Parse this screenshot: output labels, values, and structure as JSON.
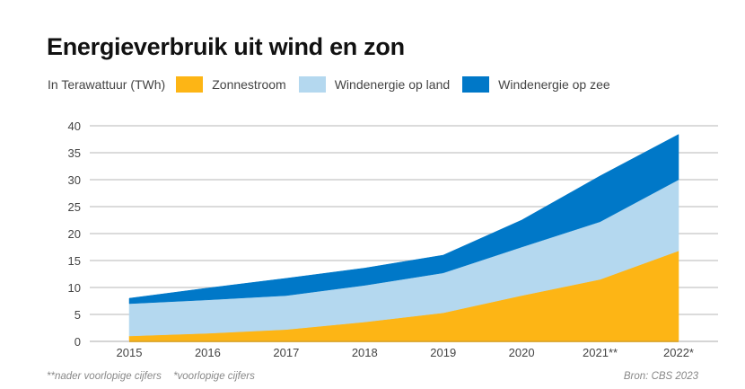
{
  "chart_data": {
    "type": "area",
    "stacked": true,
    "title": "Energieverbruik uit wind en zon",
    "unit_label": "In Terawattuur (TWh)",
    "xlabel": "",
    "ylabel": "",
    "categories": [
      "2015",
      "2016",
      "2017",
      "2018",
      "2019",
      "2020",
      "2021**",
      "2022*"
    ],
    "ylim": [
      0,
      40
    ],
    "yticks": [
      0,
      5,
      10,
      15,
      20,
      25,
      30,
      35,
      40
    ],
    "grid": true,
    "legend_position": "top-left",
    "series": [
      {
        "name": "Zonnestroom",
        "color": "#FDB515",
        "values": [
          1.0,
          1.5,
          2.2,
          3.6,
          5.3,
          8.5,
          11.5,
          16.8
        ]
      },
      {
        "name": "Windenergie op land",
        "color": "#B4D8EF",
        "values": [
          6.0,
          6.2,
          6.3,
          6.8,
          7.4,
          9.0,
          10.7,
          13.2
        ]
      },
      {
        "name": "Windenergie op zee",
        "color": "#0078C8",
        "values": [
          1.0,
          2.2,
          3.2,
          3.2,
          3.3,
          5.0,
          8.5,
          8.4
        ]
      }
    ]
  },
  "footnotes": [
    "**nader voorlopige cijfers",
    "*voorlopige cijfers"
  ],
  "source": "Bron: CBS 2023"
}
